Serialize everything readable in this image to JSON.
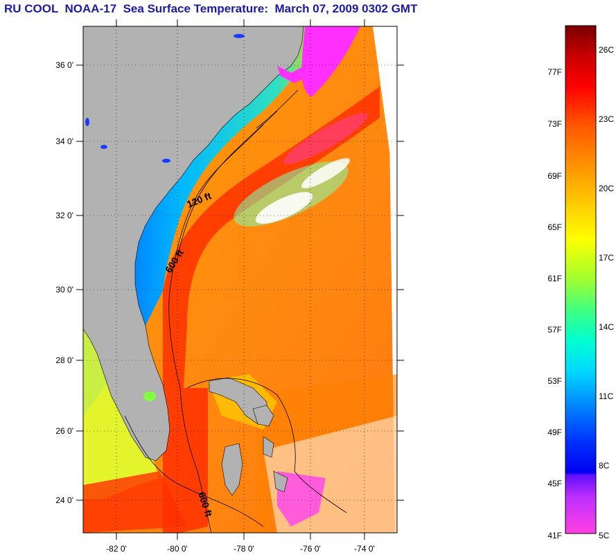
{
  "title": "RU COOL  NOAA-17  Sea Surface Temperature:  March 07, 2009 0302 GMT",
  "map": {
    "lat_labels": [
      "36 0'",
      "34 0'",
      "32 0'",
      "30 0'",
      "28 0'",
      "26 0'",
      "24 0'"
    ],
    "lon_labels": [
      "-82 0'",
      "-80 0'",
      "-78 0'",
      "-76 0'",
      "-74 0'"
    ],
    "isobath_labels": [
      "120 ft",
      "600 ft",
      "600 ft"
    ],
    "colors": {
      "land": "#b2b2b2",
      "no_data": "#ffffff",
      "coast_line": "#000000"
    }
  },
  "colorbar": {
    "fahrenheit_labels": [
      "77F",
      "73F",
      "69F",
      "65F",
      "61F",
      "57F",
      "53F",
      "49F",
      "45F",
      "41F"
    ],
    "celsius_labels": [
      "26C",
      "23C",
      "20C",
      "17C",
      "14C",
      "11C",
      "8C",
      "5C"
    ],
    "gradient_colors": [
      "#8b0000",
      "#ff0000",
      "#ff8000",
      "#ffff00",
      "#80ff40",
      "#00ffff",
      "#0080ff",
      "#0000ff",
      "#ff00ff",
      "#ff60ff"
    ]
  }
}
